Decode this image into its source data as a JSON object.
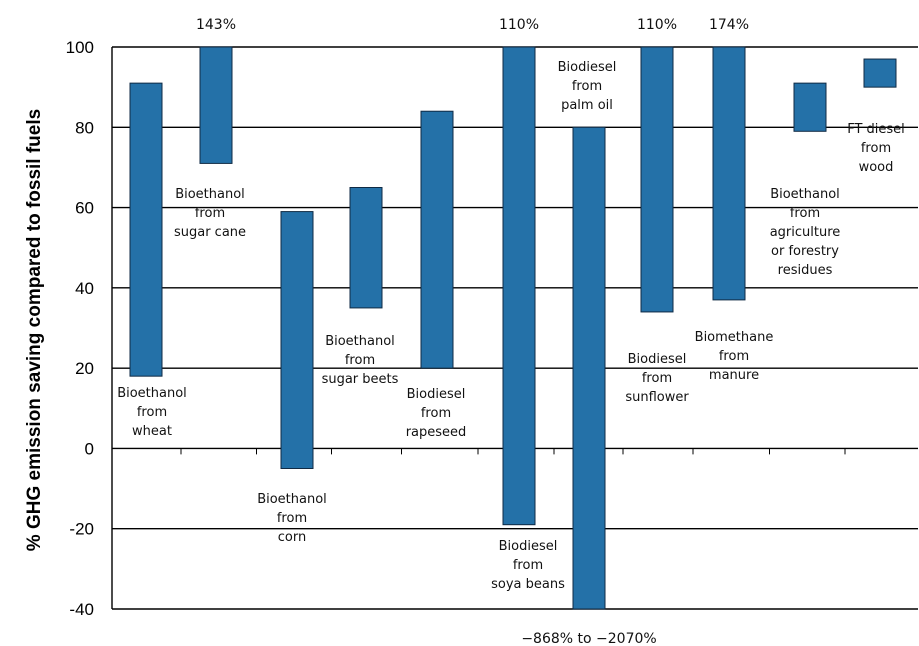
{
  "chart_data": {
    "type": "bar",
    "subtype": "floating-range",
    "ylabel": "% GHG emission saving compared to fossil fuels",
    "ylim": [
      -40,
      100
    ],
    "yticks": [
      -40,
      -20,
      0,
      20,
      40,
      60,
      80,
      100
    ],
    "grid": true,
    "bar_color": "#2471a8",
    "categories": [
      {
        "label": [
          "Bioethanol",
          "from",
          "wheat"
        ],
        "min": 18,
        "max": 91
      },
      {
        "label": [
          "Bioethanol",
          "from",
          "sugar cane"
        ],
        "min": 71,
        "max": 143,
        "top_label": "143%"
      },
      {
        "label": [
          "Bioethanol",
          "from",
          "corn"
        ],
        "min": -5,
        "max": 59
      },
      {
        "label": [
          "Bioethanol",
          "from",
          "sugar beets"
        ],
        "min": 35,
        "max": 65
      },
      {
        "label": [
          "Biodiesel",
          "from",
          "rapeseed"
        ],
        "min": 20,
        "max": 84
      },
      {
        "label": [
          "Biodiesel",
          "from",
          "soya beans"
        ],
        "min": -19,
        "max": 110,
        "top_label": "110%"
      },
      {
        "label": [
          "Biodiesel",
          "from",
          "palm oil"
        ],
        "min": -2070,
        "max": 80,
        "bottom_label": "−868% to −2070%"
      },
      {
        "label": [
          "Biodiesel",
          "from",
          "sunflower"
        ],
        "min": 34,
        "max": 110,
        "top_label": "110%"
      },
      {
        "label": [
          "Biomethane",
          "from",
          "manure"
        ],
        "min": 37,
        "max": 174,
        "top_label": "174%"
      },
      {
        "label": [
          "Bioethanol",
          "from",
          "agriculture",
          "or forestry",
          "residues"
        ],
        "min": 79,
        "max": 91
      },
      {
        "label": [
          "FT diesel",
          "from",
          "wood"
        ],
        "min": 90,
        "max": 97
      }
    ]
  }
}
